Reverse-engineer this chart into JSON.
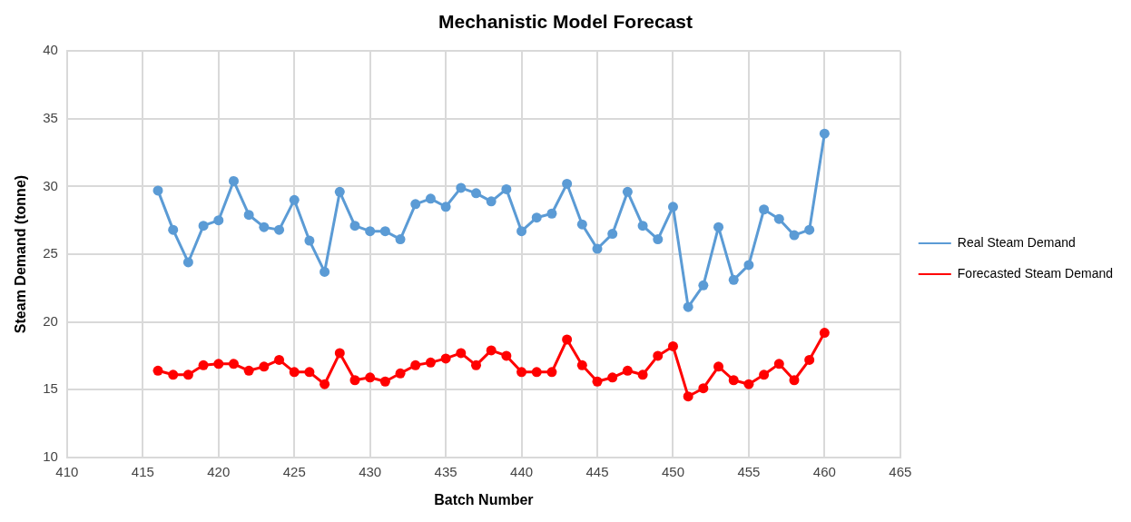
{
  "chart_data": {
    "type": "line",
    "title": "Mechanistic Model Forecast",
    "xlabel": "Batch Number",
    "ylabel": "Steam Demand (tonne)",
    "x": [
      416,
      417,
      418,
      419,
      420,
      421,
      422,
      423,
      424,
      425,
      426,
      427,
      428,
      429,
      430,
      431,
      432,
      433,
      434,
      435,
      436,
      437,
      438,
      439,
      440,
      441,
      442,
      443,
      444,
      445,
      446,
      447,
      448,
      449,
      450,
      451,
      452,
      453,
      454,
      455,
      456,
      457,
      458,
      459,
      460
    ],
    "series": [
      {
        "name": "Real Steam Demand",
        "color": "#5b9bd5",
        "values": [
          29.7,
          26.8,
          24.4,
          27.1,
          27.5,
          30.4,
          27.9,
          27.0,
          26.8,
          29.0,
          26.0,
          23.7,
          29.6,
          27.1,
          26.7,
          26.7,
          26.1,
          28.7,
          29.1,
          28.5,
          29.9,
          29.5,
          28.9,
          29.8,
          26.7,
          27.7,
          28.0,
          30.2,
          27.2,
          25.4,
          26.5,
          29.6,
          27.1,
          26.1,
          28.5,
          21.1,
          22.7,
          27.0,
          23.1,
          24.2,
          28.3,
          27.6,
          26.4,
          26.8,
          33.9
        ]
      },
      {
        "name": "Forecasted Steam Demand",
        "color": "#ff0000",
        "values": [
          16.4,
          16.1,
          16.1,
          16.8,
          16.9,
          16.9,
          16.4,
          16.7,
          17.2,
          16.3,
          16.3,
          15.4,
          17.7,
          15.7,
          15.9,
          15.6,
          16.2,
          16.8,
          17.0,
          17.3,
          17.7,
          16.8,
          17.9,
          17.5,
          16.3,
          16.3,
          16.3,
          18.7,
          16.8,
          15.6,
          15.9,
          16.4,
          16.1,
          17.5,
          18.2,
          14.5,
          15.1,
          16.7,
          15.7,
          15.4,
          16.1,
          16.9,
          15.7,
          17.2,
          19.2
        ]
      }
    ],
    "xlim": [
      410,
      465
    ],
    "xticks": [
      410,
      415,
      420,
      425,
      430,
      435,
      440,
      445,
      450,
      455,
      460,
      465
    ],
    "ylim": [
      10,
      40
    ],
    "yticks": [
      10,
      15,
      20,
      25,
      30,
      35,
      40
    ],
    "grid": true,
    "legend": "right",
    "marker": "circle",
    "line_style": "solid"
  }
}
